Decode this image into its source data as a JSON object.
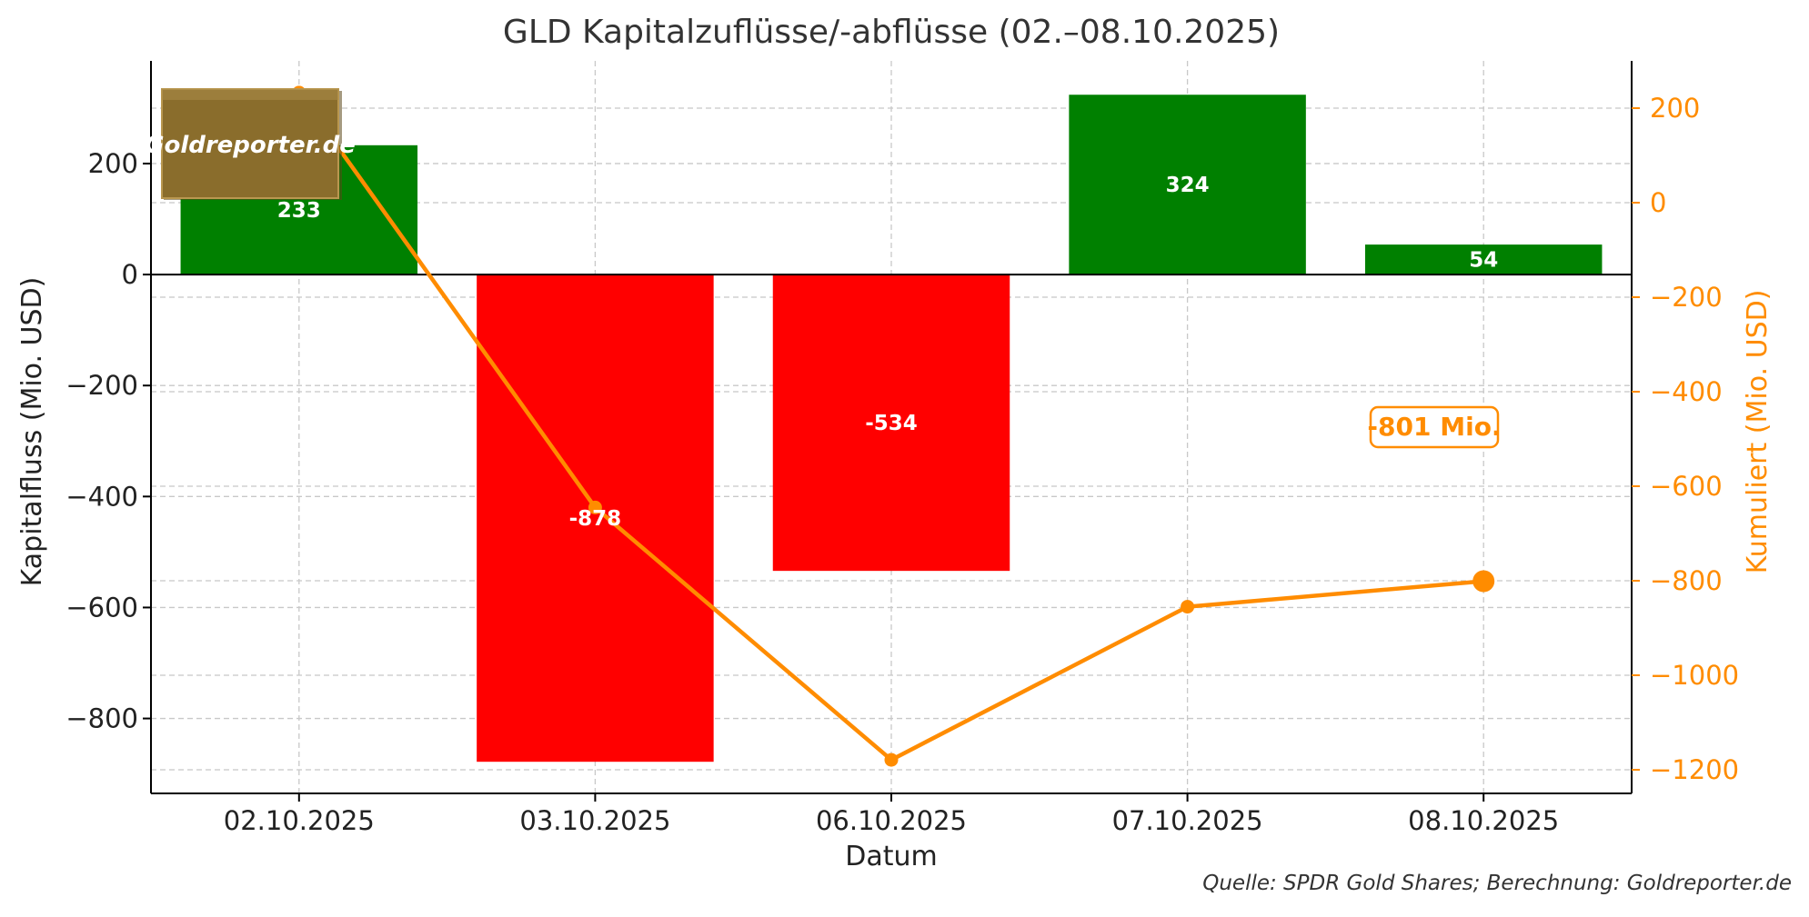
{
  "chart_data": {
    "type": "bar",
    "title": "GLD Kapitalzuflüsse/-abflüsse (02.–08.10.2025)",
    "xlabel": "Datum",
    "ylabel": "Kapitalfluss (Mio. USD)",
    "y2label": "Kumuliert (Mio. USD)",
    "categories": [
      "02.10.2025",
      "03.10.2025",
      "06.10.2025",
      "07.10.2025",
      "08.10.2025"
    ],
    "series": [
      {
        "values": [
          233,
          -878,
          -534,
          324,
          54
        ],
        "data_labels": [
          "233",
          "-878",
          "-534",
          "324",
          "54"
        ]
      },
      {
        "axis": "right",
        "type": "line",
        "values": [
          233,
          -645,
          -1179,
          -855,
          -801
        ]
      }
    ],
    "ylim": [
      -935,
      385
    ],
    "y2lim": [
      -1250,
      300
    ],
    "yticks": [
      200,
      0,
      -200,
      -400,
      -600,
      -800
    ],
    "ytick_labels": [
      "200",
      "0",
      "−200",
      "−400",
      "−600",
      "−800"
    ],
    "y2ticks": [
      200,
      0,
      -200,
      -400,
      -600,
      -800,
      -1000,
      -1200
    ],
    "y2tick_labels": [
      "200",
      "0",
      "−200",
      "−400",
      "−600",
      "−800",
      "−1000",
      "−1200"
    ],
    "grid": true,
    "annotation": "-801 Mio.",
    "source": "Quelle: SPDR Gold Shares; Berechnung: Goldreporter.de",
    "logo_text": "Goldreporter.de",
    "colors": {
      "positive": "#008000",
      "negative": "#ff0000",
      "line": "#ff8c00",
      "axis_right": "#ff8c00",
      "logo_bg": "#8a6d2c",
      "text": "#333333"
    }
  }
}
